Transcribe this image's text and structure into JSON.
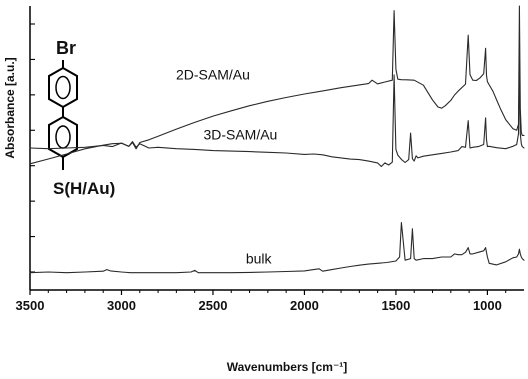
{
  "chart_data": {
    "type": "line",
    "title": "",
    "xlabel": "Wavenumbers [cm⁻¹]",
    "ylabel": "Absorbance [a.u.]",
    "x_reversed": true,
    "xlim": [
      3500,
      800
    ],
    "xticks": [
      3500,
      3000,
      2500,
      2000,
      1500,
      1000
    ],
    "yticks_labeled": false,
    "molecule_labels": {
      "top": "Br",
      "bottom": "S(H/Au)"
    },
    "colors": {
      "line": "#2a2a2a",
      "axis": "#000000",
      "background": "#ffffff"
    },
    "series": [
      {
        "name": "2D-SAM/Au",
        "x": [
          3500,
          3400,
          3300,
          3200,
          3100,
          3050,
          3000,
          2960,
          2940,
          2920,
          2900,
          2850,
          2800,
          2700,
          2600,
          2500,
          2400,
          2300,
          2200,
          2100,
          2000,
          1900,
          1800,
          1700,
          1650,
          1630,
          1600,
          1560,
          1520,
          1510,
          1500,
          1490,
          1470,
          1440,
          1400,
          1350,
          1300,
          1270,
          1250,
          1230,
          1200,
          1180,
          1160,
          1120,
          1105,
          1095,
          1080,
          1060,
          1040,
          1020,
          1010,
          1005,
          1000,
          990,
          970,
          950,
          930,
          900,
          880,
          860,
          840,
          830,
          825,
          820,
          815,
          810,
          800
        ],
        "y": [
          0.0,
          0.3,
          0.62,
          0.95,
          1.18,
          1.27,
          1.3,
          1.1,
          1.35,
          0.95,
          1.35,
          1.52,
          1.75,
          2.2,
          2.62,
          3.02,
          3.36,
          3.68,
          3.96,
          4.2,
          4.42,
          4.62,
          4.82,
          5.0,
          5.08,
          5.3,
          5.06,
          5.18,
          5.3,
          9.7,
          6.0,
          5.36,
          5.33,
          5.32,
          5.3,
          4.98,
          4.05,
          3.6,
          3.52,
          3.68,
          4.02,
          4.36,
          4.6,
          5.05,
          8.15,
          5.65,
          5.3,
          5.28,
          5.45,
          5.7,
          7.32,
          5.6,
          5.2,
          5.0,
          4.6,
          4.05,
          3.52,
          2.8,
          2.5,
          2.22,
          2.12,
          2.5,
          10.0,
          3.5,
          2.0,
          1.8,
          1.8
        ]
      },
      {
        "name": "3D-SAM/Au",
        "x": [
          3500,
          3400,
          3300,
          3200,
          3100,
          3050,
          3000,
          2960,
          2940,
          2920,
          2900,
          2850,
          2800,
          2700,
          2600,
          2500,
          2400,
          2300,
          2200,
          2100,
          2000,
          1950,
          1900,
          1850,
          1800,
          1750,
          1700,
          1650,
          1600,
          1580,
          1560,
          1540,
          1520,
          1510,
          1500,
          1490,
          1470,
          1450,
          1430,
          1420,
          1410,
          1400,
          1390,
          1380,
          1350,
          1300,
          1250,
          1200,
          1160,
          1140,
          1120,
          1105,
          1095,
          1080,
          1050,
          1020,
          1010,
          1005,
          1000,
          990,
          950,
          900,
          860,
          840,
          830,
          825,
          820,
          815,
          810,
          800
        ],
        "y": [
          0.0,
          -0.05,
          0.0,
          0.05,
          0.18,
          0.1,
          0.35,
          0.12,
          0.45,
          0.05,
          0.3,
          0.0,
          0.05,
          -0.05,
          -0.1,
          -0.18,
          -0.22,
          -0.25,
          -0.3,
          -0.35,
          -0.45,
          -0.42,
          -0.48,
          -0.62,
          -0.7,
          -0.78,
          -0.82,
          -0.92,
          -1.05,
          -1.3,
          -1.05,
          -1.2,
          -1.0,
          5.15,
          -0.1,
          -0.5,
          -0.8,
          -1.02,
          -0.82,
          1.05,
          -0.75,
          -0.92,
          -0.55,
          -0.7,
          -0.58,
          -0.48,
          -0.38,
          -0.28,
          -0.18,
          0.1,
          0.05,
          1.92,
          0.0,
          0.05,
          0.1,
          0.25,
          2.12,
          0.6,
          0.1,
          0.12,
          0.02,
          -0.05,
          0.12,
          0.25,
          1.0,
          5.8,
          1.0,
          0.3,
          0.1,
          0.0
        ]
      },
      {
        "name": "bulk",
        "x": [
          3500,
          3400,
          3300,
          3200,
          3100,
          3080,
          3060,
          3000,
          2950,
          2900,
          2800,
          2700,
          2620,
          2600,
          2580,
          2500,
          2400,
          2300,
          2200,
          2100,
          2000,
          1950,
          1920,
          1900,
          1850,
          1800,
          1750,
          1700,
          1650,
          1600,
          1550,
          1500,
          1480,
          1470,
          1450,
          1420,
          1410,
          1400,
          1390,
          1350,
          1300,
          1250,
          1200,
          1180,
          1160,
          1140,
          1120,
          1105,
          1095,
          1080,
          1050,
          1020,
          1010,
          1005,
          1000,
          990,
          950,
          900,
          860,
          840,
          830,
          825,
          820,
          815,
          810,
          800
        ],
        "y": [
          0.0,
          0.05,
          0.0,
          0.05,
          0.1,
          0.2,
          0.12,
          0.05,
          0.0,
          0.0,
          0.0,
          0.0,
          0.05,
          0.15,
          0.0,
          0.0,
          0.0,
          0.02,
          0.05,
          0.08,
          0.12,
          0.2,
          0.25,
          0.1,
          0.2,
          0.3,
          0.4,
          0.48,
          0.55,
          0.6,
          0.65,
          0.75,
          1.0,
          3.2,
          0.8,
          0.9,
          2.8,
          0.9,
          0.8,
          0.9,
          0.9,
          1.0,
          1.0,
          1.2,
          1.15,
          1.15,
          1.3,
          1.6,
          1.2,
          1.2,
          1.3,
          1.4,
          1.6,
          1.3,
          1.0,
          0.6,
          0.5,
          0.7,
          0.95,
          1.0,
          1.2,
          1.5,
          1.2,
          1.0,
          0.9,
          0.8
        ]
      }
    ],
    "axes": [
      {
        "series": 0,
        "ylim": [
          -8.0,
          10.0
        ]
      },
      {
        "series": 1,
        "ylim": [
          -10.0,
          10.0
        ]
      },
      {
        "series": 2,
        "ylim": [
          -1.1,
          17.0
        ]
      }
    ],
    "annotations": [
      {
        "text": "2D-SAM/Au",
        "x": 2500,
        "y": 5.35,
        "series": 0,
        "anchor": "middle"
      },
      {
        "text": "3D-SAM/Au",
        "x": 2350,
        "y": 0.6,
        "series": 1,
        "anchor": "middle"
      },
      {
        "text": "bulk",
        "x": 2250,
        "y": 0.6,
        "series": 2,
        "anchor": "middle"
      }
    ]
  }
}
